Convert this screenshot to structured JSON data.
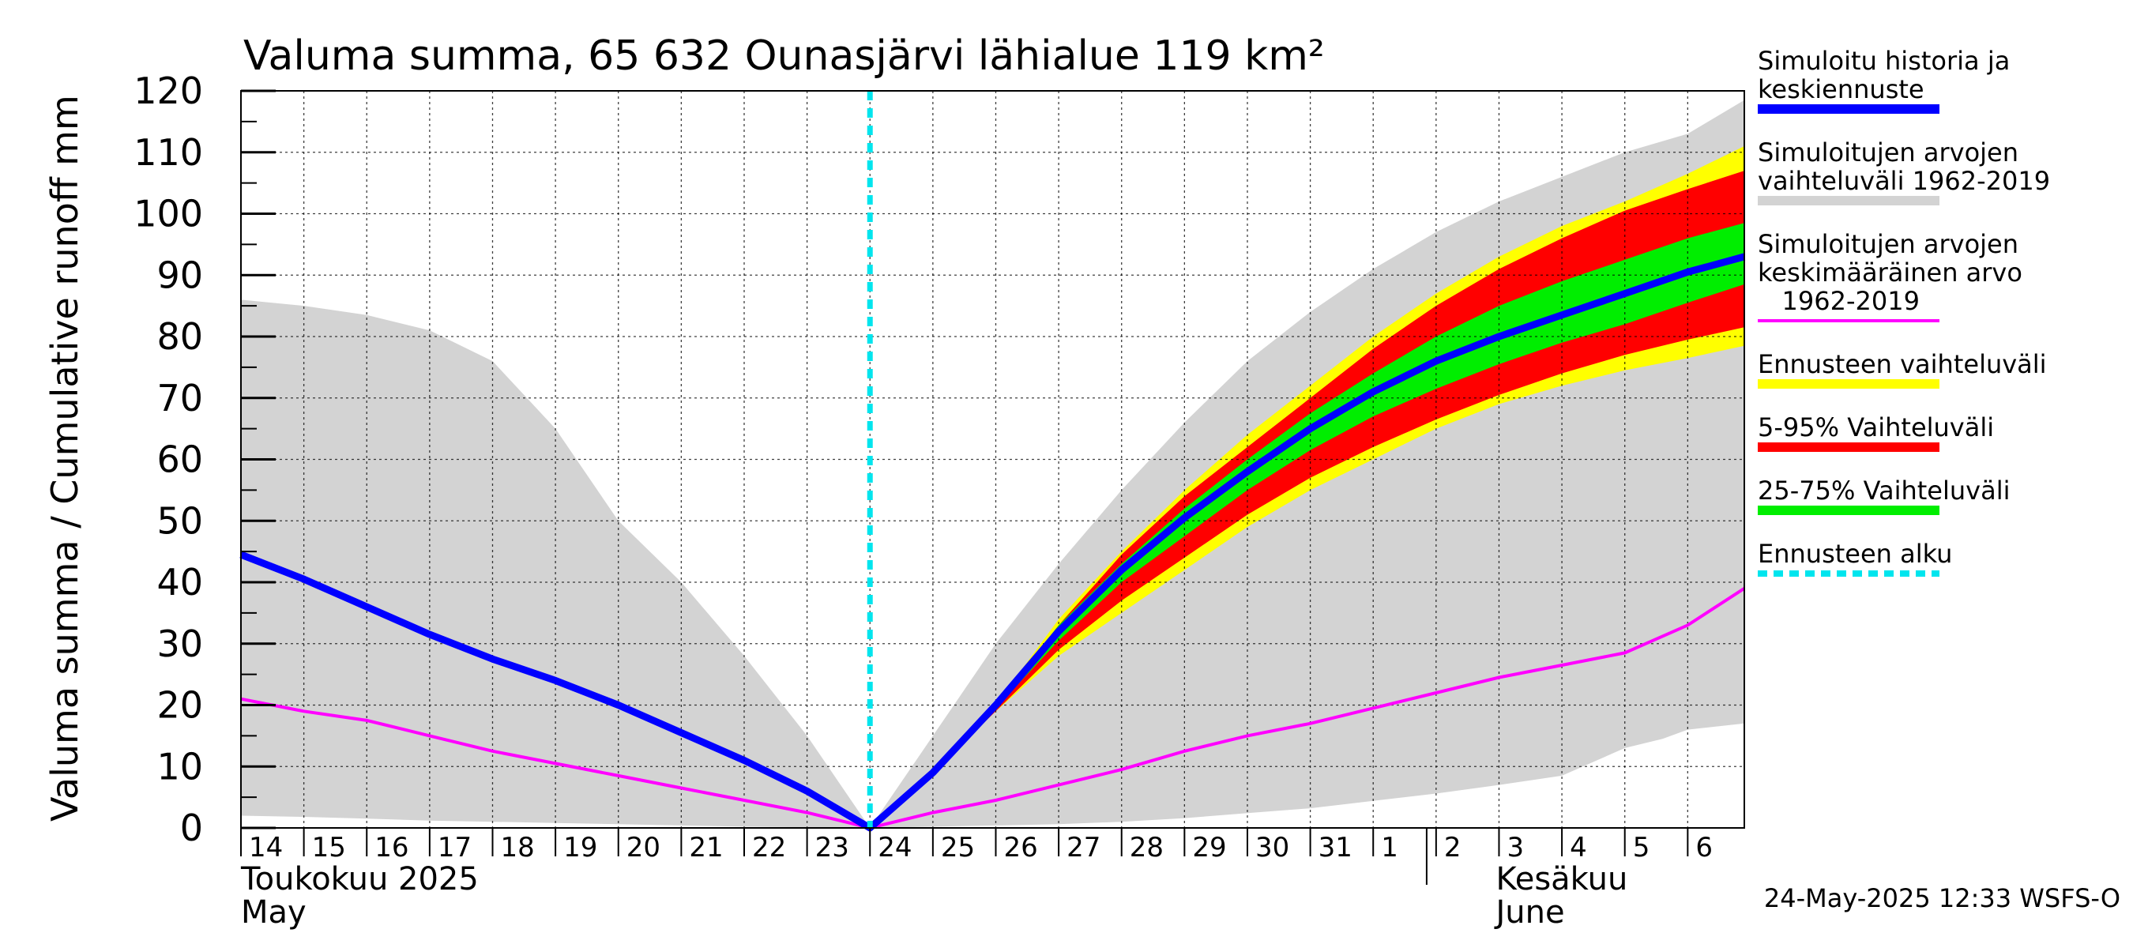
{
  "chart_data": {
    "type": "area",
    "title": "Valuma summa, 65 632 Ounasjärvi lähialue 119 km²",
    "ylabel": "Valuma summa / Cumulative runoff    mm",
    "ylim": [
      0,
      120
    ],
    "yticks": [
      0,
      10,
      20,
      30,
      40,
      50,
      60,
      70,
      80,
      90,
      100,
      110,
      120
    ],
    "x_start": "2025-05-14",
    "x_end": "2025-06-06",
    "x_ticks": [
      "14",
      "15",
      "16",
      "17",
      "18",
      "19",
      "20",
      "21",
      "22",
      "23",
      "24",
      "25",
      "26",
      "27",
      "28",
      "29",
      "30",
      "31",
      "1",
      "2",
      "3",
      "4",
      "5",
      "6"
    ],
    "months": [
      {
        "line1": "Toukokuu  2025",
        "line2": "May",
        "at_day": 0
      },
      {
        "line1": "Kesäkuu",
        "line2": "June",
        "at_day": 19
      }
    ],
    "forecast_start_day": 10,
    "grid": true,
    "legend_placement": "right",
    "legend": [
      {
        "key": "sim",
        "label_lines": [
          "Simuloitu historia ja",
          "keskiennuste"
        ],
        "color": "#0000ff",
        "style": "line"
      },
      {
        "key": "range",
        "label_lines": [
          "Simuloitujen arvojen",
          "vaihteluväli 1962-2019"
        ],
        "color": "#d3d3d3",
        "style": "line"
      },
      {
        "key": "mean",
        "label_lines": [
          "Simuloitujen arvojen",
          "keskimääräinen arvo",
          "   1962-2019"
        ],
        "color": "#ff00ff",
        "style": "thin"
      },
      {
        "key": "fc",
        "label_lines": [
          "Ennusteen vaihteluväli"
        ],
        "color": "#ffff00",
        "style": "line"
      },
      {
        "key": "p5_95",
        "label_lines": [
          "5-95% Vaihteluväli"
        ],
        "color": "#ff0000",
        "style": "line"
      },
      {
        "key": "p25_75",
        "label_lines": [
          "25-75% Vaihteluväli"
        ],
        "color": "#00ee00",
        "style": "line"
      },
      {
        "key": "start",
        "label_lines": [
          "Ennusteen alku"
        ],
        "color": "#00e5ee",
        "style": "dashed"
      }
    ],
    "series": {
      "hist_max": {
        "x": [
          0,
          1,
          2,
          3,
          4,
          5,
          6,
          7,
          8,
          9,
          10,
          11,
          12,
          13,
          14,
          15,
          16,
          17,
          18,
          19,
          20,
          21,
          22,
          23,
          23.9
        ],
        "y": [
          86,
          85,
          83.5,
          81,
          76,
          65,
          50,
          40,
          28,
          15,
          0,
          15,
          30,
          43,
          55,
          66,
          76,
          84,
          91,
          97,
          102,
          106,
          110,
          113,
          118.5
        ]
      },
      "hist_min": {
        "x": [
          0,
          1,
          2,
          3,
          4,
          5,
          6,
          7,
          8,
          9,
          10,
          11,
          12,
          13,
          14,
          15,
          16,
          17,
          18,
          19,
          20,
          21,
          22,
          22.6,
          23,
          23.9
        ],
        "y": [
          2,
          1.8,
          1.5,
          1.2,
          1,
          0.8,
          0.6,
          0.4,
          0.2,
          0.1,
          0,
          0.2,
          0.4,
          0.6,
          1,
          1.6,
          2.4,
          3.2,
          4.4,
          5.6,
          7,
          8.5,
          13,
          14.5,
          16,
          17
        ]
      },
      "sim": {
        "x": [
          0,
          1,
          2,
          3,
          4,
          5,
          6,
          7,
          8,
          9,
          10,
          11,
          12,
          13,
          14,
          15,
          16,
          17,
          18,
          19,
          20,
          21,
          22,
          23,
          23.9
        ],
        "y": [
          44.5,
          40.5,
          36,
          31.5,
          27.5,
          24,
          20,
          15.5,
          11,
          6,
          0,
          9,
          20,
          32,
          42,
          50.5,
          58,
          65,
          71,
          76,
          80,
          83.5,
          87,
          90.5,
          93
        ]
      },
      "mean": {
        "x": [
          0,
          1,
          2,
          3,
          4,
          5,
          6,
          7,
          8,
          9,
          10,
          11,
          12,
          13,
          14,
          15,
          16,
          17,
          18,
          19,
          20,
          21,
          22,
          23,
          23.9
        ],
        "y": [
          21,
          19,
          17.5,
          15,
          12.5,
          10.5,
          8.5,
          6.5,
          4.5,
          2.5,
          0,
          2.5,
          4.5,
          7,
          9.5,
          12.5,
          15,
          17,
          19.5,
          22,
          24.5,
          26.5,
          28.5,
          33,
          39
        ]
      },
      "fc_max": {
        "x": [
          11,
          12,
          13,
          14,
          15,
          16,
          17,
          18,
          19,
          20,
          21,
          22,
          23,
          23.9
        ],
        "y": [
          9,
          20,
          34,
          45,
          55,
          64,
          72,
          80,
          87,
          93,
          98,
          102,
          106.5,
          111
        ]
      },
      "fc_min": {
        "x": [
          11,
          12,
          13,
          14,
          15,
          16,
          17,
          18,
          19,
          20,
          21,
          22,
          23,
          23.9
        ],
        "y": [
          9,
          19,
          28,
          35,
          42,
          49,
          55,
          60,
          65,
          69,
          72,
          74.5,
          76.5,
          78.5
        ]
      },
      "p95": {
        "x": [
          11,
          12,
          13,
          14,
          15,
          16,
          17,
          18,
          19,
          20,
          21,
          22,
          23,
          23.9
        ],
        "y": [
          9,
          20,
          33,
          44.5,
          54,
          62,
          70,
          78,
          85,
          91,
          96,
          100.5,
          104,
          107
        ]
      },
      "p5": {
        "x": [
          11,
          12,
          13,
          14,
          15,
          16,
          17,
          18,
          19,
          20,
          21,
          22,
          23,
          23.9
        ],
        "y": [
          9,
          19,
          29,
          37,
          44,
          51,
          57,
          62,
          66.5,
          70.5,
          74,
          77,
          79.5,
          81.5
        ]
      },
      "p75": {
        "x": [
          11,
          12,
          13,
          14,
          15,
          16,
          17,
          18,
          19,
          20,
          21,
          22,
          23,
          23.9
        ],
        "y": [
          9,
          20,
          33,
          43,
          52,
          60,
          67.5,
          74,
          80,
          85,
          89,
          92.5,
          96,
          98.5
        ]
      },
      "p25": {
        "x": [
          11,
          12,
          13,
          14,
          15,
          16,
          17,
          18,
          19,
          20,
          21,
          22,
          23,
          23.9
        ],
        "y": [
          9,
          19.5,
          30.5,
          40,
          47.5,
          55,
          61.5,
          67,
          71.5,
          75.5,
          79,
          82,
          85.5,
          88.5
        ]
      }
    }
  },
  "timestamp": "24-May-2025 12:33 WSFS-O"
}
